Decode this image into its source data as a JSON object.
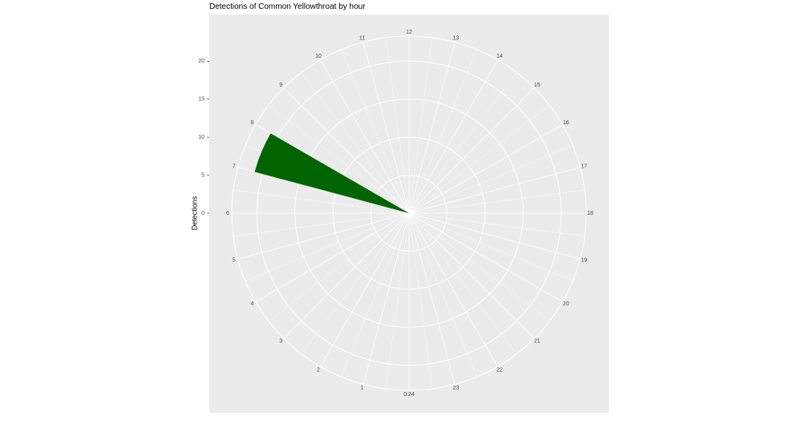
{
  "chart_data": {
    "type": "polar-bar",
    "title": "Detections of Common Yellowthroat by hour",
    "y_label": "Detections",
    "x": [
      0,
      1,
      2,
      3,
      4,
      5,
      6,
      7,
      8,
      9,
      10,
      11,
      12,
      13,
      14,
      15,
      16,
      17,
      18,
      19,
      20,
      21,
      22,
      23
    ],
    "values": [
      0,
      0,
      0,
      0,
      0,
      0,
      0,
      21,
      0,
      0,
      0,
      0,
      0,
      0,
      0,
      0,
      0,
      0,
      0,
      0,
      0,
      0,
      0,
      0
    ],
    "color": "#006400",
    "xlim": [
      0,
      24
    ],
    "xticks": [
      {
        "value": 0,
        "label": "0:24"
      },
      1,
      2,
      3,
      4,
      5,
      6,
      7,
      8,
      9,
      10,
      11,
      12,
      13,
      14,
      15,
      16,
      17,
      18,
      19,
      20,
      21,
      22,
      23
    ],
    "ylim": [
      0,
      23.3
    ],
    "yticks": [
      0,
      5,
      10,
      15,
      20
    ],
    "grid": true
  }
}
